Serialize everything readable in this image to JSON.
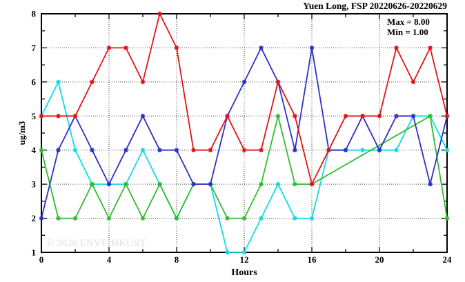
{
  "header": {
    "title": "Yuen Long, FSP 20220626-20220629"
  },
  "annotation": {
    "max_label": "Max = 8.00",
    "min_label": "Min = 1.00"
  },
  "watermark": "© 2026 ENVF, HKUST",
  "colors": {
    "red": "#e21414",
    "blue": "#2e2ec9",
    "green": "#2dbe2d",
    "cyan": "#0fdbe8",
    "grid": "#444444",
    "axis": "#000000",
    "watermark": "#dedede"
  },
  "chart_data": {
    "type": "line",
    "title": "Yuen Long, FSP 20220626-20220629",
    "xlabel": "Hours",
    "ylabel": "ug/m3",
    "xlim": [
      0,
      24
    ],
    "ylim": [
      1,
      8
    ],
    "xticks_major": [
      0,
      4,
      8,
      12,
      16,
      20,
      24
    ],
    "xticks_minor_step": 2,
    "yticks_major": [
      1,
      2,
      3,
      4,
      5,
      6,
      7,
      8
    ],
    "yticks_minor_step": 0.5,
    "grid_x_at": [
      4,
      8,
      12,
      16,
      20
    ],
    "grid_y_at": [
      2,
      3,
      4,
      5,
      6,
      7
    ],
    "legend": "none",
    "marker": "asterisk",
    "x": [
      0,
      1,
      2,
      3,
      4,
      5,
      6,
      7,
      8,
      9,
      10,
      11,
      12,
      13,
      14,
      15,
      16,
      17,
      18,
      19,
      20,
      21,
      22,
      23,
      24
    ],
    "series": [
      {
        "name": "cyan-line",
        "color_key": "cyan",
        "values": [
          5,
          6,
          4,
          3,
          3,
          3,
          4,
          3,
          2,
          3,
          3,
          1,
          1,
          2,
          3,
          2,
          2,
          4,
          4,
          4,
          4,
          4,
          5,
          5,
          4
        ]
      },
      {
        "name": "green-line",
        "color_key": "green",
        "values": [
          4,
          2,
          2,
          3,
          2,
          3,
          2,
          3,
          2,
          3,
          3,
          2,
          2,
          3,
          5,
          3,
          3,
          null,
          null,
          null,
          null,
          null,
          null,
          5,
          2
        ]
      },
      {
        "name": "blue-line",
        "color_key": "blue",
        "values": [
          2,
          4,
          5,
          4,
          3,
          4,
          5,
          4,
          4,
          3,
          3,
          5,
          6,
          7,
          6,
          4,
          7,
          4,
          4,
          5,
          4,
          5,
          5,
          3,
          5
        ]
      },
      {
        "name": "red-line",
        "color_key": "red",
        "values": [
          5,
          5,
          5,
          6,
          7,
          7,
          6,
          8,
          7,
          4,
          4,
          5,
          4,
          4,
          6,
          5,
          3,
          4,
          5,
          5,
          5,
          7,
          6,
          7,
          5
        ]
      }
    ]
  }
}
